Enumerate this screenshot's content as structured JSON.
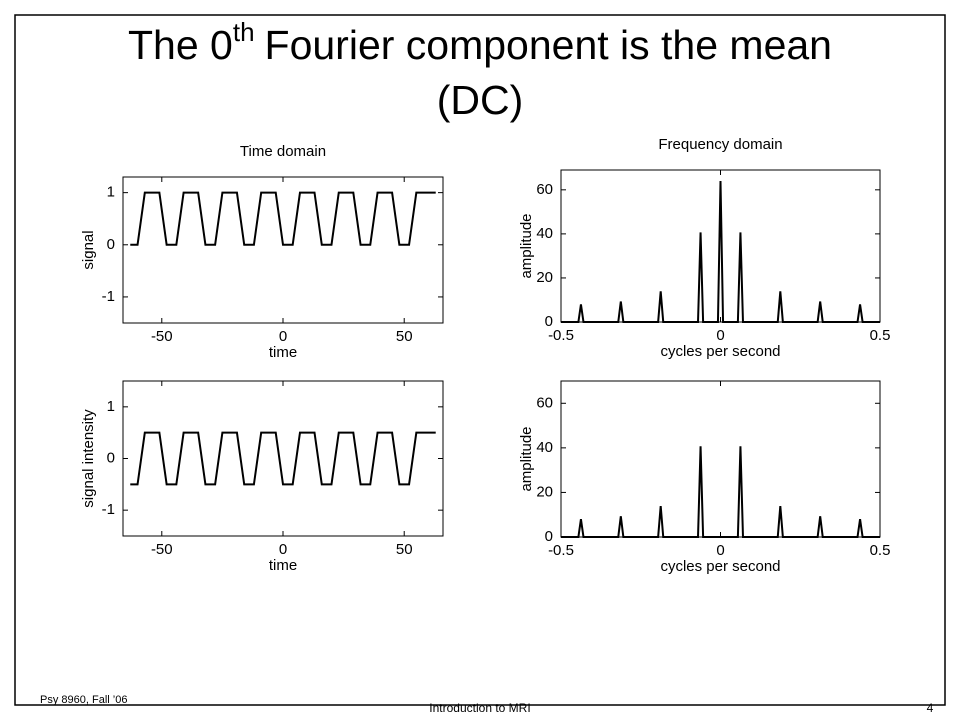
{
  "slide_title": {
    "line1_start": "The 0",
    "superscript": "th",
    "line1_end": "Fourier component is the mean",
    "line2": "(DC)"
  },
  "footer": {
    "left": "Psy 8960, Fall ’06",
    "center": "Introduction to MRI",
    "page": "4"
  },
  "chart_data": [
    {
      "type": "line",
      "title": "Time domain",
      "xlabel": "time",
      "ylabel": "signal",
      "color": "#000000",
      "x": [
        -63,
        -60,
        -57,
        -51,
        -48,
        -44,
        -41,
        -35,
        -32,
        -28,
        -25,
        -19,
        -16,
        -12,
        -9,
        -3,
        0,
        4,
        7,
        13,
        16,
        20,
        23,
        29,
        32,
        36,
        39,
        45,
        48,
        52,
        55,
        63
      ],
      "values": [
        0,
        0,
        1,
        1,
        0,
        0,
        1,
        1,
        0,
        0,
        1,
        1,
        0,
        0,
        1,
        1,
        0,
        0,
        1,
        1,
        0,
        0,
        1,
        1,
        0,
        0,
        1,
        1,
        0,
        0,
        1,
        1
      ],
      "xlim": [
        -66,
        66
      ],
      "xticks": [
        -50,
        0,
        50
      ],
      "ylim": [
        -1.5,
        1.3
      ],
      "yticks": [
        -1,
        0,
        1
      ]
    },
    {
      "type": "line",
      "xlabel": "time",
      "ylabel": "signal intensity",
      "color": "#000000",
      "x": [
        -63,
        -60,
        -57,
        -51,
        -48,
        -44,
        -41,
        -35,
        -32,
        -28,
        -25,
        -19,
        -16,
        -12,
        -9,
        -3,
        0,
        4,
        7,
        13,
        16,
        20,
        23,
        29,
        32,
        36,
        39,
        45,
        48,
        52,
        55,
        63
      ],
      "values": [
        -0.5,
        -0.5,
        0.5,
        0.5,
        -0.5,
        -0.5,
        0.5,
        0.5,
        -0.5,
        -0.5,
        0.5,
        0.5,
        -0.5,
        -0.5,
        0.5,
        0.5,
        -0.5,
        -0.5,
        0.5,
        0.5,
        -0.5,
        -0.5,
        0.5,
        0.5,
        -0.5,
        -0.5,
        0.5,
        0.5,
        -0.5,
        -0.5,
        0.5,
        0.5
      ],
      "xlim": [
        -66,
        66
      ],
      "xticks": [
        -50,
        0,
        50
      ],
      "ylim": [
        -1.5,
        1.5
      ],
      "yticks": [
        -1,
        0,
        1
      ]
    },
    {
      "type": "line",
      "title": "Frequency domain",
      "xlabel": "cycles per second",
      "ylabel": "amplitude",
      "color": "#000000",
      "x": [
        -0.5,
        -0.4455,
        -0.4375,
        -0.4295,
        -0.3205,
        -0.3125,
        -0.3045,
        -0.1955,
        -0.1875,
        -0.1795,
        -0.0705,
        -0.0625,
        -0.0545,
        -0.008,
        0,
        0.008,
        0.0545,
        0.0625,
        0.0705,
        0.1795,
        0.1875,
        0.1955,
        0.3045,
        0.3125,
        0.3205,
        0.4295,
        0.4375,
        0.4455,
        0.5
      ],
      "values": [
        0,
        0,
        8,
        0,
        0,
        9.3,
        0,
        0,
        13.9,
        0,
        0,
        40.7,
        0,
        0,
        64,
        0,
        0,
        40.7,
        0,
        0,
        13.9,
        0,
        0,
        9.3,
        0,
        0,
        8,
        0,
        0
      ],
      "xlim": [
        -0.5,
        0.5
      ],
      "xticks": [
        -0.5,
        0,
        0.5
      ],
      "ylim": [
        0,
        69
      ],
      "yticks": [
        0,
        20,
        40,
        60
      ]
    },
    {
      "type": "line",
      "xlabel": "cycles per second",
      "ylabel": "amplitude",
      "color": "#000000",
      "x": [
        -0.5,
        -0.4455,
        -0.4375,
        -0.4295,
        -0.3205,
        -0.3125,
        -0.3045,
        -0.1955,
        -0.1875,
        -0.1795,
        -0.0705,
        -0.0625,
        -0.0545,
        -0.008,
        0,
        0.008,
        0.0545,
        0.0625,
        0.0705,
        0.1795,
        0.1875,
        0.1955,
        0.3045,
        0.3125,
        0.3205,
        0.4295,
        0.4375,
        0.4455,
        0.5
      ],
      "values": [
        0,
        0,
        8,
        0,
        0,
        9.3,
        0,
        0,
        13.9,
        0,
        0,
        40.7,
        0,
        0,
        0,
        0,
        0,
        40.7,
        0,
        0,
        13.9,
        0,
        0,
        9.3,
        0,
        0,
        8,
        0,
        0
      ],
      "xlim": [
        -0.5,
        0.5
      ],
      "xticks": [
        -0.5,
        0,
        0.5
      ],
      "ylim": [
        0,
        70
      ],
      "yticks": [
        0,
        20,
        40,
        60
      ]
    }
  ]
}
